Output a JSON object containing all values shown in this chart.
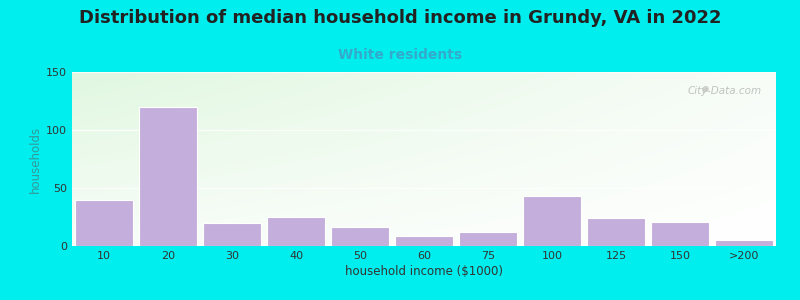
{
  "title": "Distribution of median household income in Grundy, VA in 2022",
  "subtitle": "White residents",
  "xlabel": "household income ($1000)",
  "ylabel": "households",
  "background_color": "#00EEEE",
  "bar_color": "#C4AEDB",
  "bar_edge_color": "#FFFFFF",
  "categories": [
    "10",
    "20",
    "30",
    "40",
    "50",
    "60",
    "75",
    "100",
    "125",
    "150",
    ">200"
  ],
  "values": [
    40,
    120,
    20,
    25,
    16,
    9,
    12,
    43,
    24,
    21,
    5
  ],
  "ylim": [
    0,
    150
  ],
  "yticks": [
    0,
    50,
    100,
    150
  ],
  "title_fontsize": 13,
  "subtitle_fontsize": 10,
  "subtitle_color": "#33AACC",
  "axis_label_fontsize": 8.5,
  "tick_fontsize": 8,
  "watermark": "City-Data.com",
  "grad_topleft": [
    0.88,
    0.97,
    0.88
  ],
  "grad_topright": [
    0.97,
    0.99,
    0.97
  ],
  "grad_botleft": [
    0.97,
    0.99,
    0.97
  ],
  "grad_botright": [
    1.0,
    1.0,
    1.0
  ]
}
